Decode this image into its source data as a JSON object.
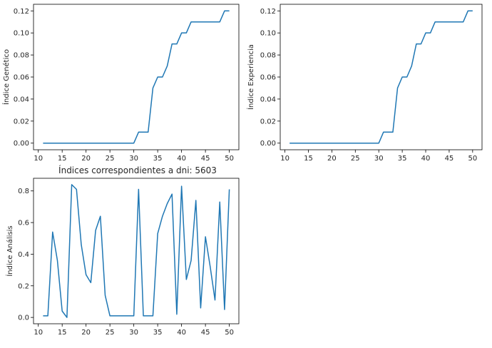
{
  "figure_title": "Índices correspondientes a dni: 5603",
  "line_color": "#1f77b4",
  "chart_data": [
    {
      "type": "line",
      "ylabel": "Índice Genético",
      "xlim": [
        9,
        52
      ],
      "ylim": [
        -0.006,
        0.126
      ],
      "xticks": [
        10,
        15,
        20,
        25,
        30,
        35,
        40,
        45,
        50
      ],
      "yticks": [
        0.0,
        0.02,
        0.04,
        0.06,
        0.08,
        0.1,
        0.12
      ],
      "ytick_labels": [
        "0.00",
        "0.02",
        "0.04",
        "0.06",
        "0.08",
        "0.10",
        "0.12"
      ],
      "x": [
        11,
        12,
        13,
        14,
        15,
        16,
        17,
        18,
        19,
        20,
        21,
        22,
        23,
        24,
        25,
        26,
        27,
        28,
        29,
        30,
        31,
        32,
        33,
        34,
        35,
        36,
        37,
        38,
        39,
        40,
        41,
        42,
        43,
        44,
        45,
        46,
        47,
        48,
        49,
        50
      ],
      "y": [
        0,
        0,
        0,
        0,
        0,
        0,
        0,
        0,
        0,
        0,
        0,
        0,
        0,
        0,
        0,
        0,
        0,
        0,
        0,
        0,
        0.01,
        0.01,
        0.01,
        0.05,
        0.06,
        0.06,
        0.07,
        0.09,
        0.09,
        0.1,
        0.1,
        0.11,
        0.11,
        0.11,
        0.11,
        0.11,
        0.11,
        0.11,
        0.12,
        0.12
      ]
    },
    {
      "type": "line",
      "ylabel": "Índice Experiencia",
      "xlim": [
        9,
        52
      ],
      "ylim": [
        -0.006,
        0.126
      ],
      "xticks": [
        10,
        15,
        20,
        25,
        30,
        35,
        40,
        45,
        50
      ],
      "yticks": [
        0.0,
        0.02,
        0.04,
        0.06,
        0.08,
        0.1,
        0.12
      ],
      "ytick_labels": [
        "0.00",
        "0.02",
        "0.04",
        "0.06",
        "0.08",
        "0.10",
        "0.12"
      ],
      "x": [
        11,
        12,
        13,
        14,
        15,
        16,
        17,
        18,
        19,
        20,
        21,
        22,
        23,
        24,
        25,
        26,
        27,
        28,
        29,
        30,
        31,
        32,
        33,
        34,
        35,
        36,
        37,
        38,
        39,
        40,
        41,
        42,
        43,
        44,
        45,
        46,
        47,
        48,
        49,
        50
      ],
      "y": [
        0,
        0,
        0,
        0,
        0,
        0,
        0,
        0,
        0,
        0,
        0,
        0,
        0,
        0,
        0,
        0,
        0,
        0,
        0,
        0,
        0.01,
        0.01,
        0.01,
        0.05,
        0.06,
        0.06,
        0.07,
        0.09,
        0.09,
        0.1,
        0.1,
        0.11,
        0.11,
        0.11,
        0.11,
        0.11,
        0.11,
        0.11,
        0.12,
        0.12
      ]
    },
    {
      "type": "line",
      "ylabel": "Índice Análisis",
      "xlim": [
        9,
        52
      ],
      "ylim": [
        -0.04,
        0.88
      ],
      "xticks": [
        10,
        15,
        20,
        25,
        30,
        35,
        40,
        45,
        50
      ],
      "yticks": [
        0.0,
        0.2,
        0.4,
        0.6,
        0.8
      ],
      "ytick_labels": [
        "0.0",
        "0.2",
        "0.4",
        "0.6",
        "0.8"
      ],
      "x": [
        11,
        12,
        13,
        14,
        15,
        16,
        17,
        18,
        19,
        20,
        21,
        22,
        23,
        24,
        25,
        26,
        27,
        28,
        29,
        30,
        31,
        32,
        33,
        34,
        35,
        36,
        37,
        38,
        39,
        40,
        41,
        42,
        43,
        44,
        45,
        46,
        47,
        48,
        49,
        50
      ],
      "y": [
        0.01,
        0.01,
        0.54,
        0.36,
        0.04,
        0.0,
        0.84,
        0.81,
        0.46,
        0.27,
        0.22,
        0.55,
        0.64,
        0.14,
        0.01,
        0.01,
        0.01,
        0.01,
        0.01,
        0.01,
        0.81,
        0.01,
        0.01,
        0.01,
        0.53,
        0.64,
        0.72,
        0.78,
        0.02,
        0.83,
        0.24,
        0.36,
        0.74,
        0.06,
        0.51,
        0.32,
        0.11,
        0.73,
        0.05,
        0.81
      ]
    }
  ]
}
